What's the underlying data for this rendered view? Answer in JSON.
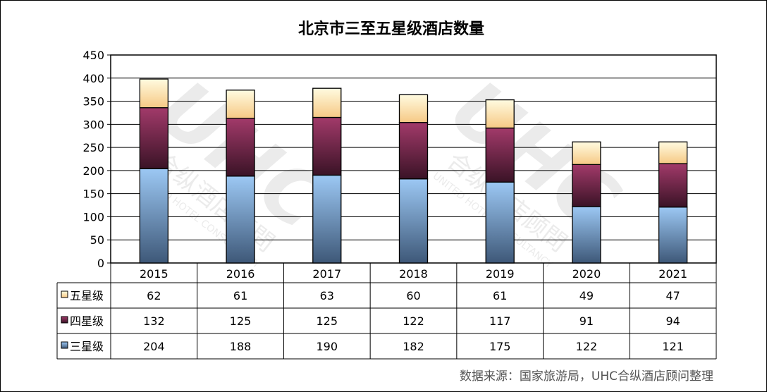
{
  "chart_data": {
    "type": "bar",
    "stacked": true,
    "title": "北京市三至五星级酒店数量",
    "categories": [
      "2015",
      "2016",
      "2017",
      "2018",
      "2019",
      "2020",
      "2021"
    ],
    "ylim": [
      0,
      450
    ],
    "yticks": [
      0,
      50,
      100,
      150,
      200,
      250,
      300,
      350,
      400,
      450
    ],
    "grid": true,
    "legend_placement": "data-table-left",
    "series": [
      {
        "name": "三星级",
        "values": [
          204,
          188,
          190,
          182,
          175,
          122,
          121
        ],
        "color_top": "#9cc8f4",
        "color_bottom": "#3e5878"
      },
      {
        "name": "四星级",
        "values": [
          132,
          125,
          125,
          122,
          117,
          91,
          94
        ],
        "color_top": "#a23a6a",
        "color_bottom": "#3a1326"
      },
      {
        "name": "五星级",
        "values": [
          62,
          61,
          63,
          60,
          61,
          49,
          47
        ],
        "color_top": "#fffbe0",
        "color_bottom": "#f6c985"
      }
    ]
  },
  "source_note": "数据来源：国家旅游局，UHC合纵酒店顾问整理",
  "watermark": {
    "logo_text": "UHC",
    "cn_text": "合纵酒店顾問",
    "en_text": "UNITED HOTEL CONSULTANCY"
  }
}
